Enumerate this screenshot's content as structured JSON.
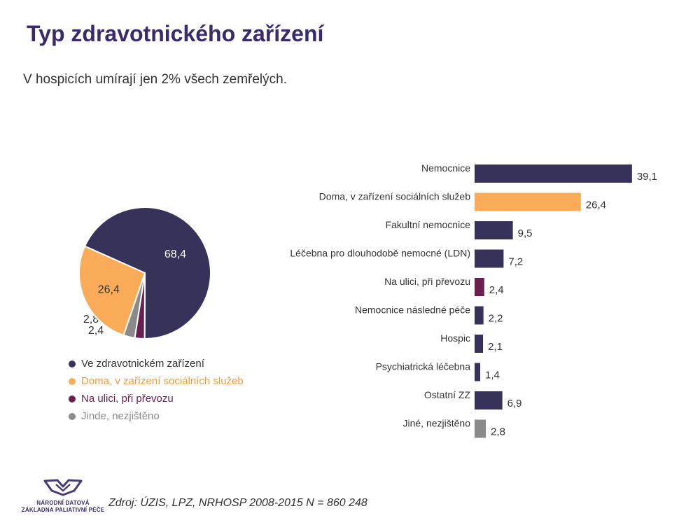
{
  "title": "Typ zdravotnického zařízení",
  "subtitle": "V hospicích umírají jen 2% všech zemřelých.",
  "source": "Zdroj: ÚZIS, LPZ, NRHOSP 2008-2015 N = 860 248",
  "logo": {
    "line1": "NÁRODNÍ DATOVÁ",
    "line2": "ZÁKLADNA PALIATIVNÍ PÉČE",
    "color": "#4a3a7a"
  },
  "colors": {
    "navy": "#37325a",
    "orange": "#f9ab57",
    "maroon": "#6a1f4e",
    "gray": "#8a8a8a"
  },
  "chart_data": [
    {
      "type": "pie",
      "slices": [
        {
          "name": "Ve zdravotnickém zařízení",
          "value": 68.4,
          "label": "68,4",
          "color": "#37325a"
        },
        {
          "name": "Na ulici, při převozu",
          "value": 2.4,
          "label": "2,4",
          "color": "#6a1f4e"
        },
        {
          "name": "Jinde, nezjištěno",
          "value": 2.8,
          "label": "2,8",
          "color": "#8a8a8a"
        },
        {
          "name": "Doma, v zařízení sociálních služeb",
          "value": 26.4,
          "label": "26,4",
          "color": "#f9ab57"
        }
      ],
      "legend": [
        {
          "label": "Ve zdravotnickém zařízení",
          "color": "#37325a",
          "text_color": "#333333"
        },
        {
          "label": "Doma, v zařízení sociálních služeb",
          "color": "#f9ab57",
          "text_color": "#f29a3c"
        },
        {
          "label": "Na ulici, při převozu",
          "color": "#6a1f4e",
          "text_color": "#6a1f4e"
        },
        {
          "label": "Jinde, nezjištěno",
          "color": "#8a8a8a",
          "text_color": "#8a8a8a"
        }
      ],
      "legend_position": "bottom"
    },
    {
      "type": "bar",
      "orientation": "horizontal",
      "categories": [
        "Nemocnice",
        "Doma, v zařízení sociálních služeb",
        "Fakultní nemocnice",
        "Léčebna pro dlouhodobě nemocné (LDN)",
        "Na ulici, při převozu",
        "Nemocnice následné péče",
        "Hospic",
        "Psychiatrická léčebna",
        "Ostatní ZZ",
        "Jiné, nezjištěno"
      ],
      "values": [
        39.1,
        26.4,
        9.5,
        7.2,
        2.4,
        2.2,
        2.1,
        1.4,
        6.9,
        2.8
      ],
      "labels": [
        "39,1",
        "26,4",
        "9,5",
        "7,2",
        "2,4",
        "2,2",
        "2,1",
        "1,4",
        "6,9",
        "2,8"
      ],
      "colors": [
        "#37325a",
        "#f9ab57",
        "#37325a",
        "#37325a",
        "#6a1f4e",
        "#37325a",
        "#37325a",
        "#37325a",
        "#37325a",
        "#8a8a8a"
      ],
      "grid": false
    }
  ]
}
